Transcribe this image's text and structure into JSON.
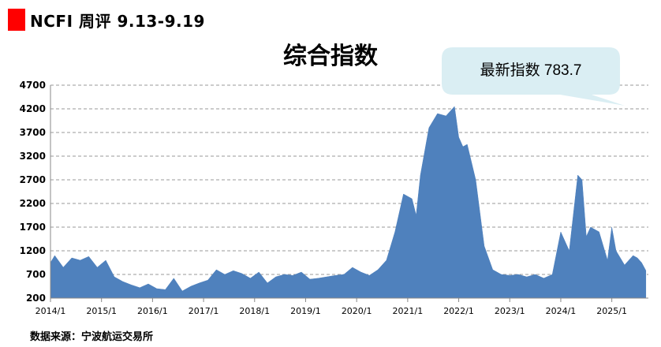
{
  "header": {
    "title": "NCFI 周评 9.13-9.19"
  },
  "callout": {
    "label": "最新指数",
    "value": "783.7"
  },
  "source_note": "数据来源：宁波航运交易所",
  "colors": {
    "accent": "#ff0000",
    "area_fill": "#4f81bd",
    "callout_fill": "#daeef3",
    "grid": "#999999"
  },
  "chart_data": {
    "type": "area",
    "title": "综合指数",
    "xlabel": "",
    "ylabel": "",
    "ylim": [
      200,
      4700
    ],
    "y_ticks": [
      200,
      700,
      1200,
      1700,
      2200,
      2700,
      3200,
      3700,
      4200,
      4700
    ],
    "x_tick_labels": [
      "2014/1",
      "2015/1",
      "2016/1",
      "2017/1",
      "2018/1",
      "2019/1",
      "2020/1",
      "2021/1",
      "2022/1",
      "2023/1",
      "2024/1",
      "2025/1"
    ],
    "grid": "horizontal dashed",
    "legend": "none",
    "series": [
      {
        "x": [
          "2014/1",
          "2014/2",
          "2014/4",
          "2014/6",
          "2014/8",
          "2014/10",
          "2014/12",
          "2015/2",
          "2015/4",
          "2015/6",
          "2015/8",
          "2015/10",
          "2015/12",
          "2016/2",
          "2016/4",
          "2016/6",
          "2016/8",
          "2016/10",
          "2016/12",
          "2017/2",
          "2017/4",
          "2017/6",
          "2017/8",
          "2017/10",
          "2017/12",
          "2018/2",
          "2018/4",
          "2018/6",
          "2018/8",
          "2018/10",
          "2018/12",
          "2019/2",
          "2019/4",
          "2019/6",
          "2019/8",
          "2019/10",
          "2019/12",
          "2020/2",
          "2020/4",
          "2020/6",
          "2020/8",
          "2020/10",
          "2020/12",
          "2021/2",
          "2021/3",
          "2021/4",
          "2021/6",
          "2021/8",
          "2021/10",
          "2021/12",
          "2022/1",
          "2022/2",
          "2022/3",
          "2022/5",
          "2022/7",
          "2022/9",
          "2022/11",
          "2023/1",
          "2023/3",
          "2023/5",
          "2023/7",
          "2023/9",
          "2023/11",
          "2024/1",
          "2024/2",
          "2024/3",
          "2024/5",
          "2024/6",
          "2024/7",
          "2024/8",
          "2024/10",
          "2024/12",
          "2025/1",
          "2025/2",
          "2025/4",
          "2025/6",
          "2025/7",
          "2025/8",
          "2025/9"
        ],
        "values": [
          950,
          1100,
          850,
          1050,
          1000,
          1080,
          850,
          1000,
          650,
          550,
          480,
          420,
          500,
          400,
          380,
          620,
          350,
          450,
          520,
          580,
          800,
          700,
          780,
          720,
          620,
          750,
          520,
          650,
          700,
          680,
          750,
          600,
          620,
          650,
          680,
          700,
          850,
          750,
          680,
          800,
          1000,
          1600,
          2400,
          2300,
          1950,
          2800,
          3800,
          4100,
          4050,
          4250,
          3600,
          3400,
          3450,
          2700,
          1300,
          800,
          700,
          680,
          700,
          650,
          700,
          620,
          700,
          1600,
          1400,
          1200,
          2800,
          2700,
          1500,
          1700,
          1600,
          1000,
          1700,
          1200,
          900,
          1100,
          1050,
          950,
          783.7
        ]
      }
    ]
  }
}
